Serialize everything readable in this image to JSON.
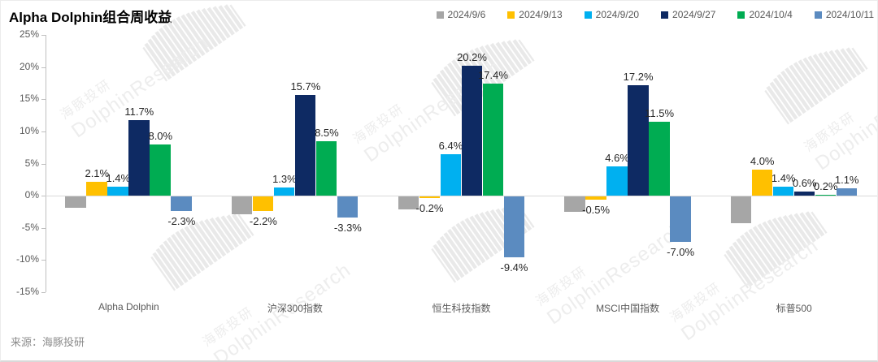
{
  "title": "Alpha Dolphin组合周收益",
  "source": "来源：海豚投研",
  "watermark": {
    "cn": "海豚投研",
    "en": "DolphinResearch"
  },
  "chart_data": {
    "type": "bar",
    "title": "Alpha Dolphin组合周收益",
    "categories": [
      "Alpha Dolphin",
      "沪深300指数",
      "恒生科技指数",
      "MSCI中国指数",
      "标普500"
    ],
    "series": [
      {
        "name": "2024/9/6",
        "color": "#a6a6a6",
        "show_labels": false,
        "estimated": true,
        "values": [
          -1.8,
          -2.7,
          -2.0,
          -2.4,
          -4.2
        ]
      },
      {
        "name": "2024/9/13",
        "color": "#ffc000",
        "show_labels": true,
        "values": [
          2.1,
          -2.2,
          -0.2,
          -0.5,
          4.0
        ]
      },
      {
        "name": "2024/9/20",
        "color": "#00b0f0",
        "show_labels": true,
        "values": [
          1.4,
          1.3,
          6.4,
          4.6,
          1.4
        ]
      },
      {
        "name": "2024/9/27",
        "color": "#0e2a63",
        "show_labels": true,
        "values": [
          11.7,
          15.7,
          20.2,
          17.2,
          0.6
        ]
      },
      {
        "name": "2024/10/4",
        "color": "#00ac52",
        "show_labels": true,
        "values": [
          8.0,
          8.5,
          17.4,
          11.5,
          0.2
        ]
      },
      {
        "name": "2024/10/11",
        "color": "#5b8bc0",
        "show_labels": true,
        "values": [
          -2.3,
          -3.3,
          -9.4,
          -7.0,
          1.1
        ]
      }
    ],
    "ylim": [
      -15,
      25
    ],
    "y_tick_step": 5,
    "y_ticks": [
      "25%",
      "20%",
      "15%",
      "10%",
      "5%",
      "0%",
      "-5%",
      "-10%",
      "-15%"
    ],
    "grid": "zero-line-only",
    "legend_position": "top-right",
    "xlabel": "",
    "ylabel": ""
  }
}
